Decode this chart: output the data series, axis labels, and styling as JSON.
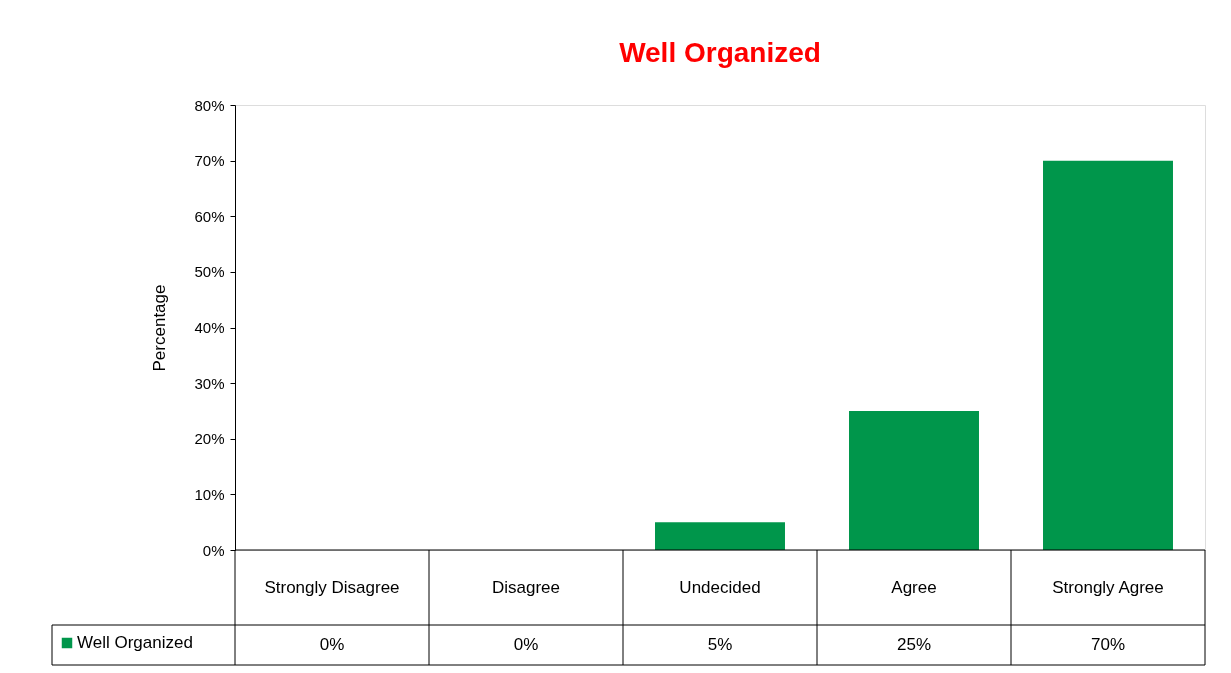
{
  "chart_data": {
    "type": "bar",
    "title": "Well Organized",
    "ylabel": "Percentage",
    "categories": [
      "Strongly Disagree",
      "Disagree",
      "Undecided",
      "Agree",
      "Strongly Agree"
    ],
    "series": [
      {
        "name": "Well Organized",
        "color": "#00964b",
        "values": [
          0,
          0,
          5,
          25,
          70
        ]
      }
    ],
    "value_labels": [
      "0%",
      "0%",
      "5%",
      "25%",
      "70%"
    ],
    "ylim": [
      0,
      80
    ],
    "yticks": [
      {
        "value": 0,
        "label": "0%"
      },
      {
        "value": 10,
        "label": "10%"
      },
      {
        "value": 20,
        "label": "20%"
      },
      {
        "value": 30,
        "label": "30%"
      },
      {
        "value": 40,
        "label": "40%"
      },
      {
        "value": 50,
        "label": "50%"
      },
      {
        "value": 60,
        "label": "60%"
      },
      {
        "value": 70,
        "label": "70%"
      },
      {
        "value": 80,
        "label": "80%"
      }
    ],
    "grid": false,
    "legend": "bottom left"
  }
}
